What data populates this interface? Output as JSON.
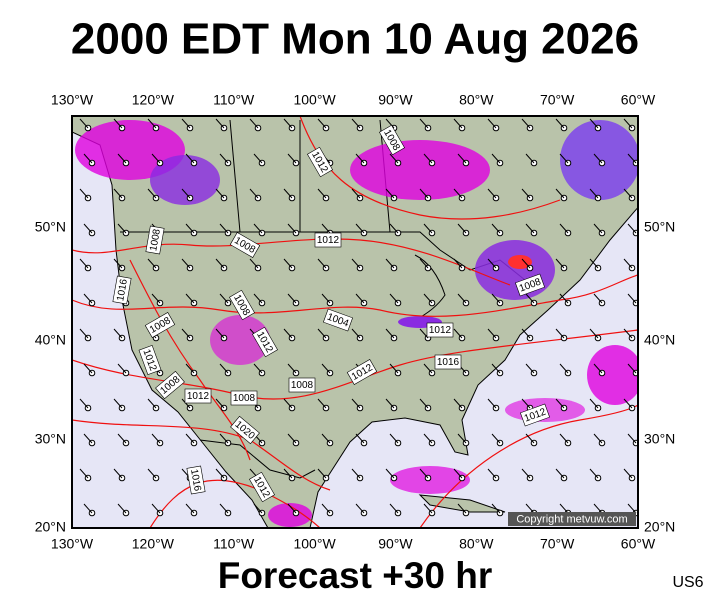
{
  "title": "2000 EDT Mon 10 Aug 2026",
  "footer": "Forecast +30 hr",
  "region": "US6",
  "copyright": "Copyright metvuw.com",
  "longitude_labels": [
    "130°W",
    "120°W",
    "110°W",
    "100°W",
    "90°W",
    "80°W",
    "70°W",
    "60°W"
  ],
  "latitude_labels": [
    "50°N",
    "40°N",
    "30°N",
    "20°N"
  ],
  "isobar_labels": [
    "1008",
    "1012",
    "1008",
    "1008",
    "1012",
    "1016",
    "1008",
    "1004",
    "1012",
    "1008",
    "1012",
    "1008",
    "1016",
    "1012",
    "1012",
    "1008",
    "1008",
    "1012",
    "1008",
    "1020",
    "1012",
    "1016",
    "1012"
  ]
}
